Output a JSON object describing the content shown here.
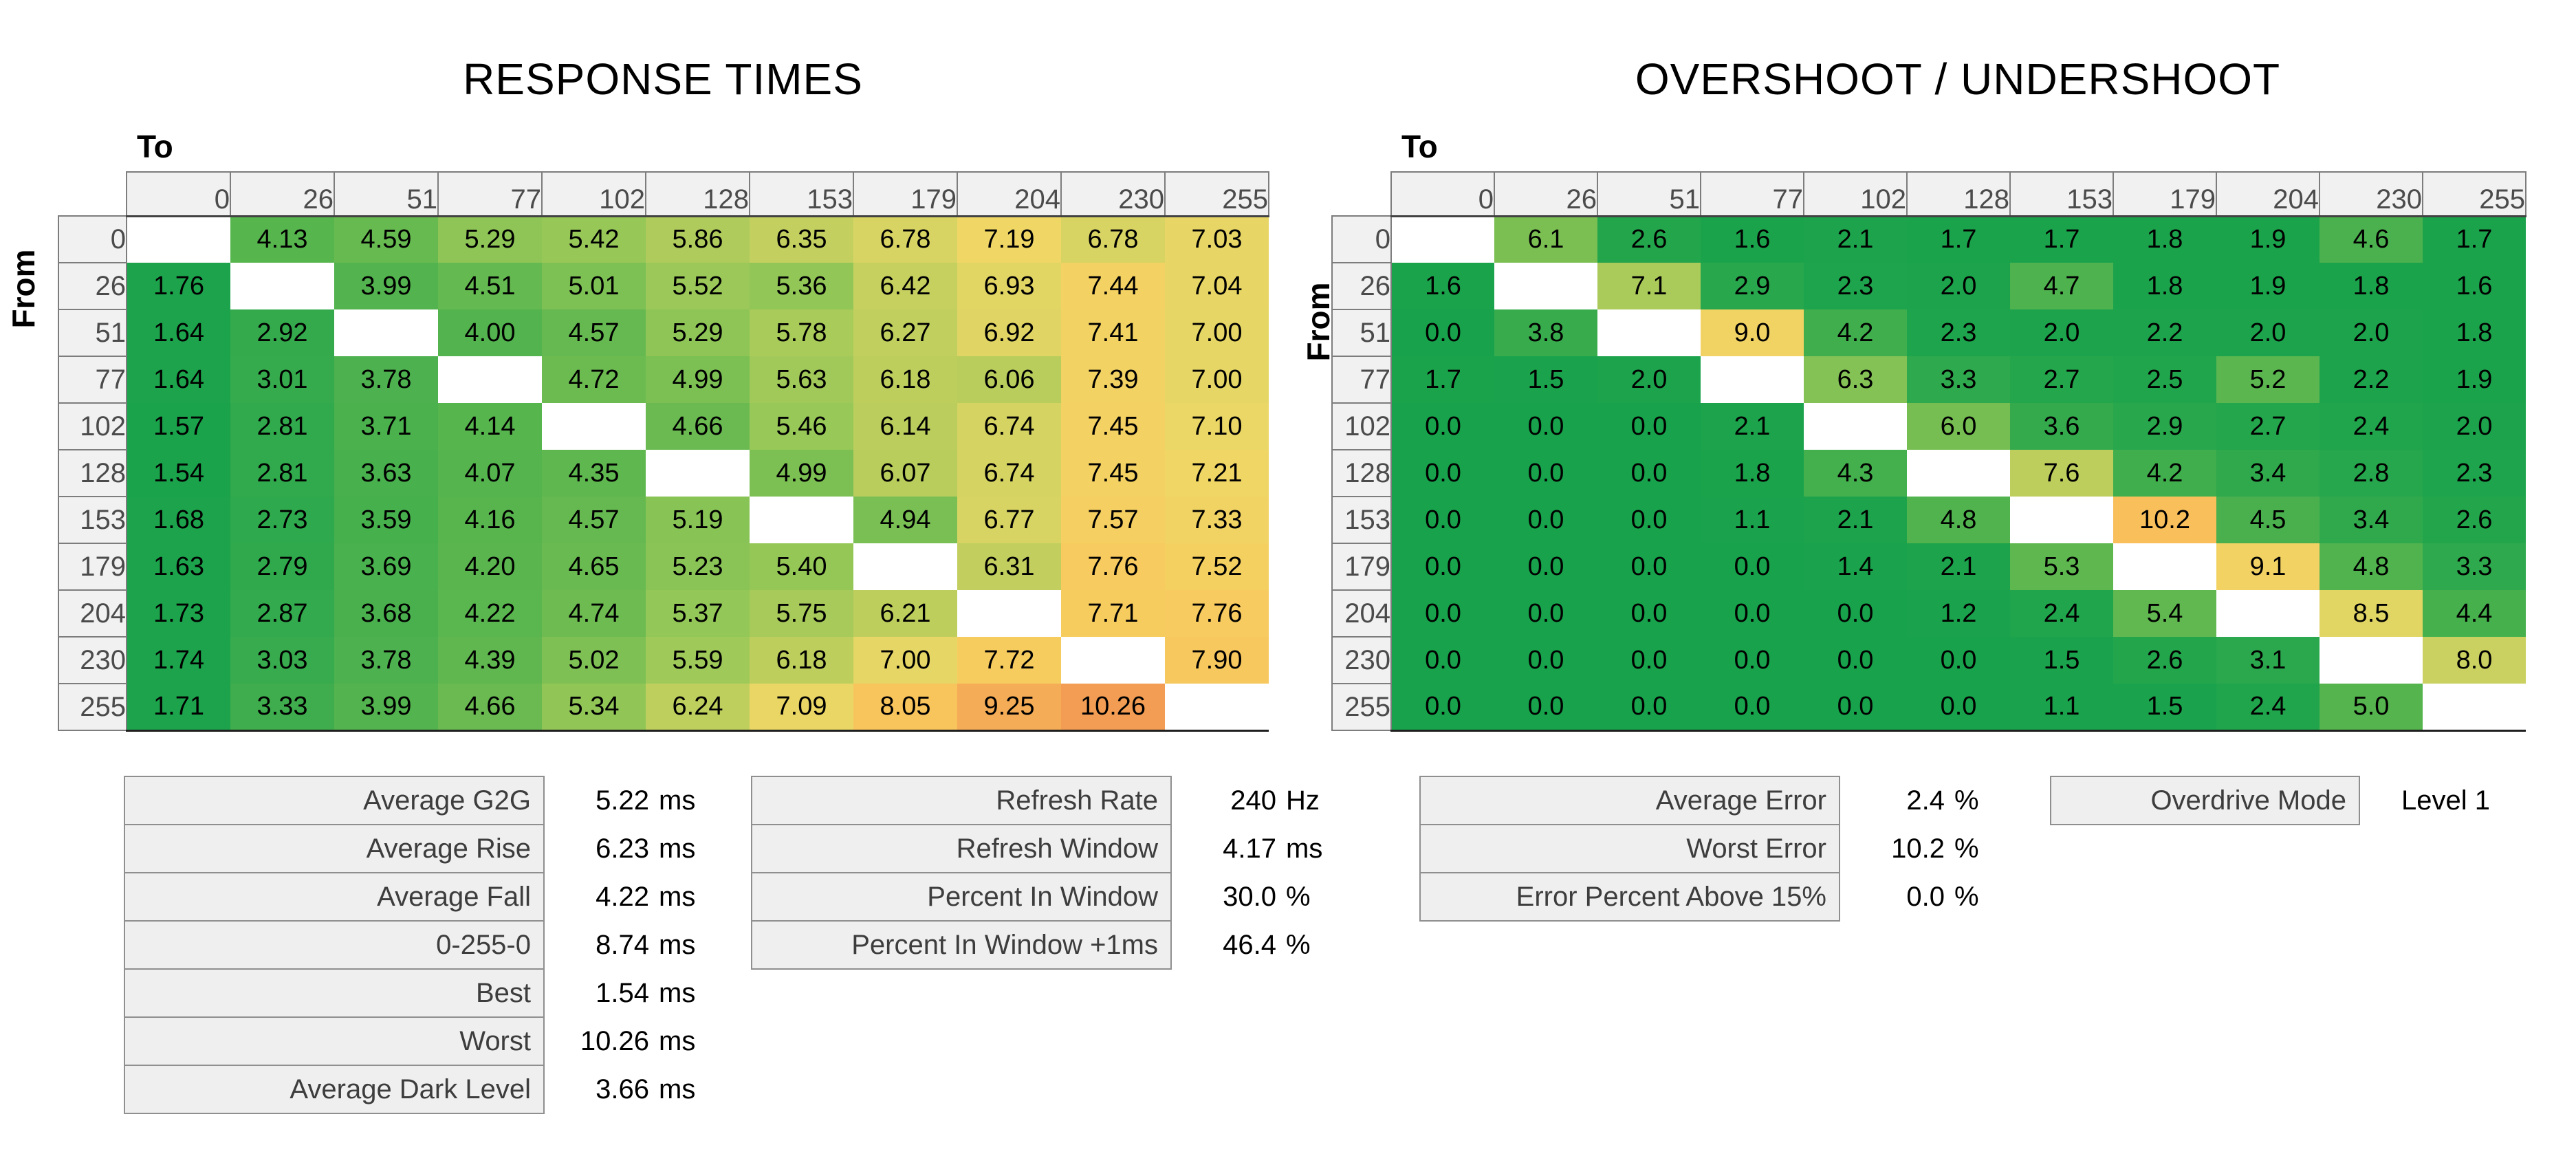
{
  "titles": {
    "left": "RESPONSE TIMES",
    "right": "OVERSHOOT / UNDERSHOOT"
  },
  "axis_labels": {
    "to": "To",
    "from": "From"
  },
  "colors": {
    "background": "#ffffff",
    "header_bg": "#f1f1f1",
    "header_border": "#7d7d7d",
    "header_text": "#4b4b4b",
    "stat_label_text": "#3d3d3d",
    "grid_bottom_line": "#1f1f1f",
    "heatmap_gradient_stops": [
      [
        0.0,
        "#17a24b"
      ],
      [
        0.16,
        "#1ca34c"
      ],
      [
        0.25,
        "#2fa94d"
      ],
      [
        0.31,
        "#41ae4d"
      ],
      [
        0.37,
        "#55b44e"
      ],
      [
        0.43,
        "#6cbb51"
      ],
      [
        0.49,
        "#94c757"
      ],
      [
        0.55,
        "#b8cd5c"
      ],
      [
        0.6,
        "#cdd261"
      ],
      [
        0.65,
        "#eed766"
      ],
      [
        0.7,
        "#f7cc5f"
      ],
      [
        0.75,
        "#f8c05b"
      ],
      [
        0.85,
        "#f4aa55"
      ],
      [
        0.95,
        "#f19a52"
      ],
      [
        1.0,
        "#ef9150"
      ]
    ]
  },
  "chart_data": [
    {
      "type": "heatmap",
      "title": "RESPONSE TIMES",
      "xlabel": "To",
      "ylabel": "From",
      "unit": "ms",
      "x_levels": [
        "0",
        "26",
        "51",
        "77",
        "102",
        "128",
        "153",
        "179",
        "204",
        "230",
        "255"
      ],
      "y_levels": [
        "0",
        "26",
        "51",
        "77",
        "102",
        "128",
        "153",
        "179",
        "204",
        "230",
        "255"
      ],
      "color_value_max": 11,
      "cells": [
        [
          "",
          "4.13",
          "4.59",
          "5.29",
          "5.42",
          "5.86",
          "6.35",
          "6.78",
          "7.19",
          "6.78",
          "7.03"
        ],
        [
          "1.76",
          "",
          "3.99",
          "4.51",
          "5.01",
          "5.52",
          "5.36",
          "6.42",
          "6.93",
          "7.44",
          "7.04"
        ],
        [
          "1.64",
          "2.92",
          "",
          "4.00",
          "4.57",
          "5.29",
          "5.78",
          "6.27",
          "6.92",
          "7.41",
          "7.00"
        ],
        [
          "1.64",
          "3.01",
          "3.78",
          "",
          "4.72",
          "4.99",
          "5.63",
          "6.18",
          "6.06",
          "7.39",
          "7.00"
        ],
        [
          "1.57",
          "2.81",
          "3.71",
          "4.14",
          "",
          "4.66",
          "5.46",
          "6.14",
          "6.74",
          "7.45",
          "7.10"
        ],
        [
          "1.54",
          "2.81",
          "3.63",
          "4.07",
          "4.35",
          "",
          "4.99",
          "6.07",
          "6.74",
          "7.45",
          "7.21"
        ],
        [
          "1.68",
          "2.73",
          "3.59",
          "4.16",
          "4.57",
          "5.19",
          "",
          "4.94",
          "6.77",
          "7.57",
          "7.33"
        ],
        [
          "1.63",
          "2.79",
          "3.69",
          "4.20",
          "4.65",
          "5.23",
          "5.40",
          "",
          "6.31",
          "7.76",
          "7.52"
        ],
        [
          "1.73",
          "2.87",
          "3.68",
          "4.22",
          "4.74",
          "5.37",
          "5.75",
          "6.21",
          "",
          "7.71",
          "7.76"
        ],
        [
          "1.74",
          "3.03",
          "3.78",
          "4.39",
          "5.02",
          "5.59",
          "6.18",
          "7.00",
          "7.72",
          "",
          "7.90"
        ],
        [
          "1.71",
          "3.33",
          "3.99",
          "4.66",
          "5.34",
          "6.24",
          "7.09",
          "8.05",
          "9.25",
          "10.26",
          ""
        ]
      ]
    },
    {
      "type": "heatmap",
      "title": "OVERSHOOT / UNDERSHOOT",
      "xlabel": "To",
      "ylabel": "From",
      "unit": "%",
      "x_levels": [
        "0",
        "26",
        "51",
        "77",
        "102",
        "128",
        "153",
        "179",
        "204",
        "230",
        "255"
      ],
      "y_levels": [
        "0",
        "26",
        "51",
        "77",
        "102",
        "128",
        "153",
        "179",
        "204",
        "230",
        "255"
      ],
      "color_value_max": 13.5,
      "cells": [
        [
          "",
          "6.1",
          "2.6",
          "1.6",
          "2.1",
          "1.7",
          "1.7",
          "1.8",
          "1.9",
          "4.6",
          "1.7"
        ],
        [
          "1.6",
          "",
          "7.1",
          "2.9",
          "2.3",
          "2.0",
          "4.7",
          "1.8",
          "1.9",
          "1.8",
          "1.6"
        ],
        [
          "0.0",
          "3.8",
          "",
          "9.0",
          "4.2",
          "2.3",
          "2.0",
          "2.2",
          "2.0",
          "2.0",
          "1.8"
        ],
        [
          "1.7",
          "1.5",
          "2.0",
          "",
          "6.3",
          "3.3",
          "2.7",
          "2.5",
          "5.2",
          "2.2",
          "1.9"
        ],
        [
          "0.0",
          "0.0",
          "0.0",
          "2.1",
          "",
          "6.0",
          "3.6",
          "2.9",
          "2.7",
          "2.4",
          "2.0"
        ],
        [
          "0.0",
          "0.0",
          "0.0",
          "1.8",
          "4.3",
          "",
          "7.6",
          "4.2",
          "3.4",
          "2.8",
          "2.3"
        ],
        [
          "0.0",
          "0.0",
          "0.0",
          "1.1",
          "2.1",
          "4.8",
          "",
          "10.2",
          "4.5",
          "3.4",
          "2.6"
        ],
        [
          "0.0",
          "0.0",
          "0.0",
          "0.0",
          "1.4",
          "2.1",
          "5.3",
          "",
          "9.1",
          "4.8",
          "3.3"
        ],
        [
          "0.0",
          "0.0",
          "0.0",
          "0.0",
          "0.0",
          "1.2",
          "2.4",
          "5.4",
          "",
          "8.5",
          "4.4"
        ],
        [
          "0.0",
          "0.0",
          "0.0",
          "0.0",
          "0.0",
          "0.0",
          "1.5",
          "2.6",
          "3.1",
          "",
          "8.0"
        ],
        [
          "0.0",
          "0.0",
          "0.0",
          "0.0",
          "0.0",
          "0.0",
          "1.1",
          "1.5",
          "2.4",
          "5.0",
          ""
        ]
      ]
    }
  ],
  "stats_left": {
    "rows": [
      {
        "label": "Average G2G",
        "value": "5.22",
        "unit": "ms"
      },
      {
        "label": "Average Rise",
        "value": "6.23",
        "unit": "ms"
      },
      {
        "label": "Average Fall",
        "value": "4.22",
        "unit": "ms"
      },
      {
        "label": "0-255-0",
        "value": "8.74",
        "unit": "ms"
      },
      {
        "label": "Best",
        "value": "1.54",
        "unit": "ms"
      },
      {
        "label": "Worst",
        "value": "10.26",
        "unit": "ms"
      },
      {
        "label": "Average Dark Level",
        "value": "3.66",
        "unit": "ms"
      }
    ]
  },
  "stats_mid": {
    "rows": [
      {
        "label": "Refresh Rate",
        "value": "240",
        "unit": "Hz"
      },
      {
        "label": "Refresh Window",
        "value": "4.17",
        "unit": "ms"
      },
      {
        "label": "Percent In Window",
        "value": "30.0",
        "unit": "%"
      },
      {
        "label": "Percent In Window +1ms",
        "value": "46.4",
        "unit": "%"
      }
    ]
  },
  "stats_right": {
    "rows": [
      {
        "label": "Average Error",
        "value": "2.4",
        "unit": "%"
      },
      {
        "label": "Worst Error",
        "value": "10.2",
        "unit": "%"
      },
      {
        "label": "Error Percent Above 15%",
        "value": "0.0",
        "unit": "%"
      }
    ]
  },
  "overdrive": {
    "label": "Overdrive Mode",
    "value": "Level 1",
    "unit": ""
  }
}
